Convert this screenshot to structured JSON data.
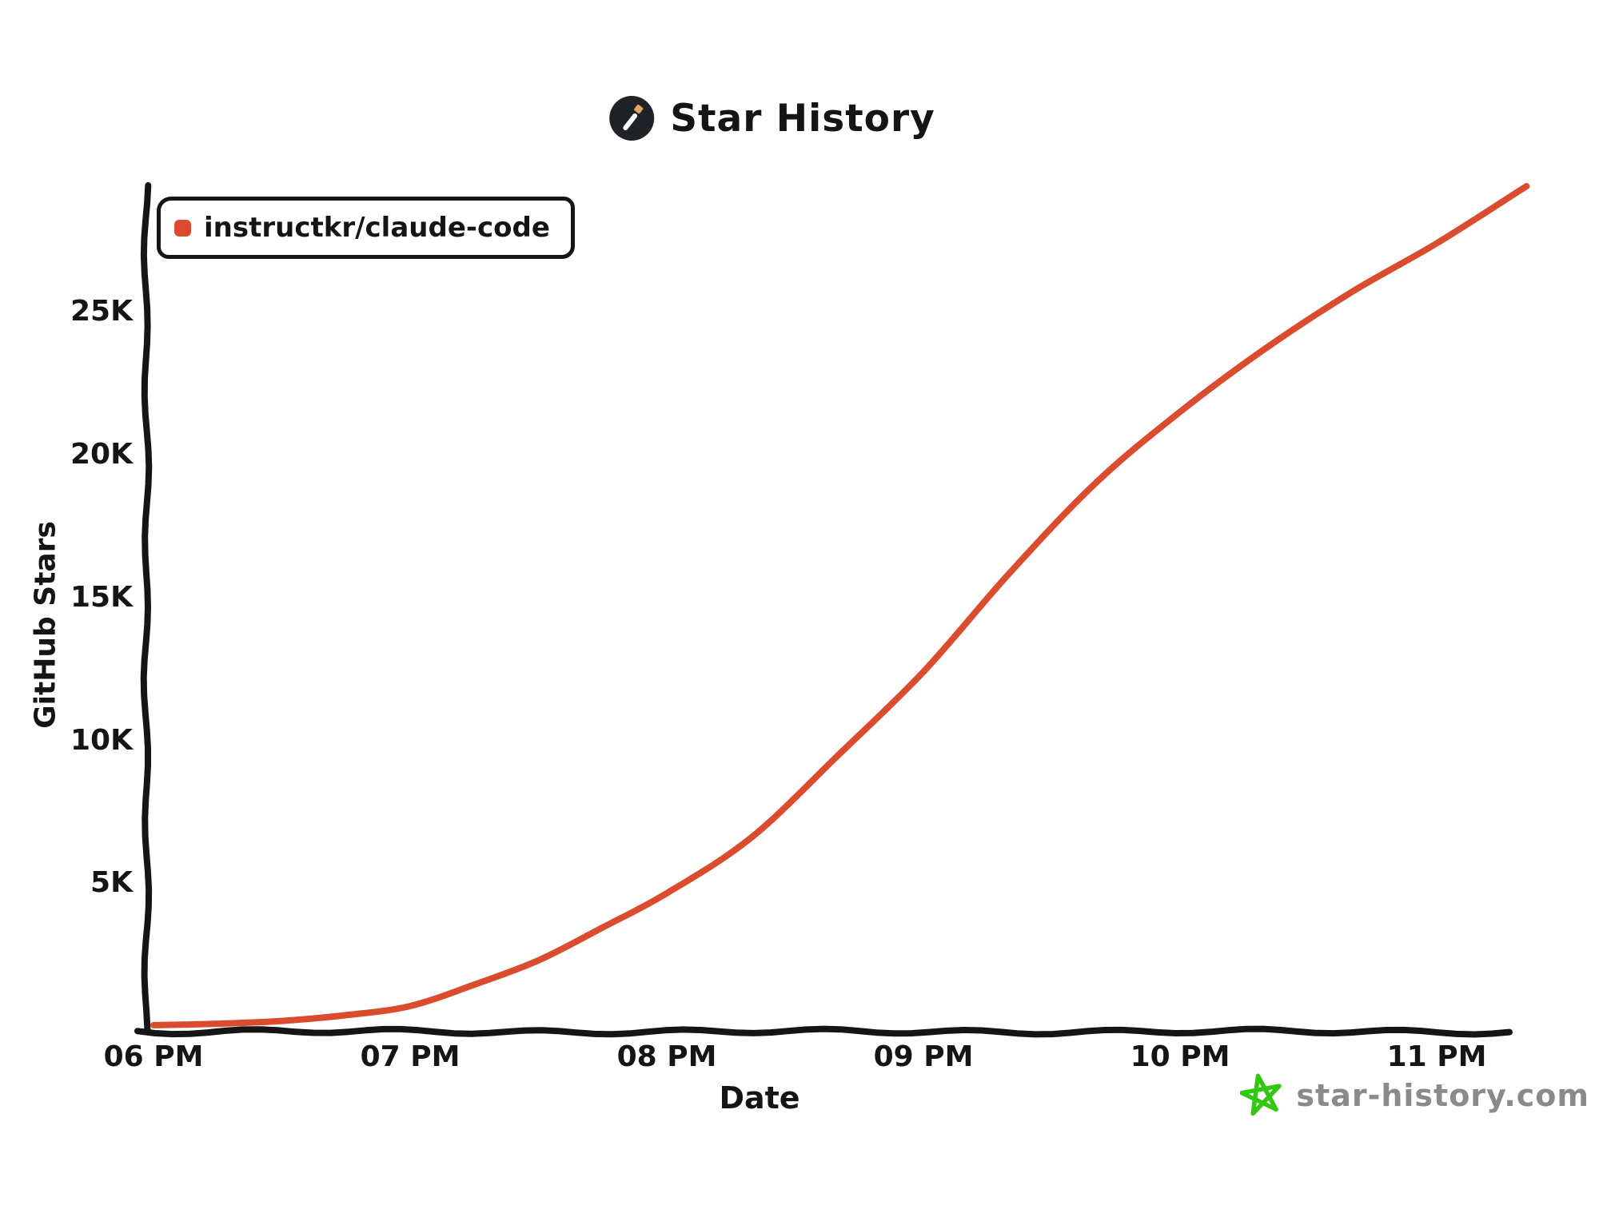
{
  "title": {
    "text": "Star History"
  },
  "legend": {
    "label": "instructkr/claude-code"
  },
  "axes": {
    "y_label": "GitHub Stars",
    "x_label": "Date"
  },
  "footer": {
    "text": "star-history.com"
  },
  "colors": {
    "line": "#DB4C2F",
    "legend_marker": "#DB4C2F",
    "axis": "#151515",
    "text": "#151515",
    "footer_text": "#8A8A8A",
    "footer_star": "#33C712",
    "logo_bg": "#1F2328",
    "logo_wand": "#FFFFFF",
    "logo_tip": "#E2A45E",
    "background": "#FFFFFF"
  },
  "chart_data": {
    "type": "line",
    "title": "Star History",
    "xlabel": "Date",
    "ylabel": "GitHub Stars",
    "x_unit": "hour of day (24h decimal, 18 = 06 PM)",
    "xlim": [
      17.97,
      23.45
    ],
    "ylim": [
      0,
      29500
    ],
    "grid": false,
    "legend_position": "top-left",
    "x_tick_hours": [
      18,
      19,
      20,
      21,
      22,
      23
    ],
    "x_tick_labels": [
      "06 PM",
      "07 PM",
      "08 PM",
      "09 PM",
      "10 PM",
      "11 PM"
    ],
    "y_tick_values": [
      5000,
      10000,
      15000,
      20000,
      25000
    ],
    "y_tick_labels": [
      "5K",
      "10K",
      "15K",
      "20K",
      "25K"
    ],
    "series": [
      {
        "name": "instructkr/claude-code",
        "color": "#DB4C2F",
        "points": [
          [
            18.0,
            30
          ],
          [
            18.25,
            80
          ],
          [
            18.5,
            180
          ],
          [
            18.75,
            380
          ],
          [
            19.0,
            700
          ],
          [
            19.25,
            1450
          ],
          [
            19.5,
            2300
          ],
          [
            19.75,
            3450
          ],
          [
            20.0,
            4650
          ],
          [
            20.33,
            6600
          ],
          [
            20.67,
            9500
          ],
          [
            21.0,
            12400
          ],
          [
            21.33,
            15800
          ],
          [
            21.67,
            19000
          ],
          [
            22.0,
            21500
          ],
          [
            22.33,
            23700
          ],
          [
            22.67,
            25700
          ],
          [
            23.0,
            27400
          ],
          [
            23.35,
            29400
          ]
        ]
      }
    ]
  }
}
